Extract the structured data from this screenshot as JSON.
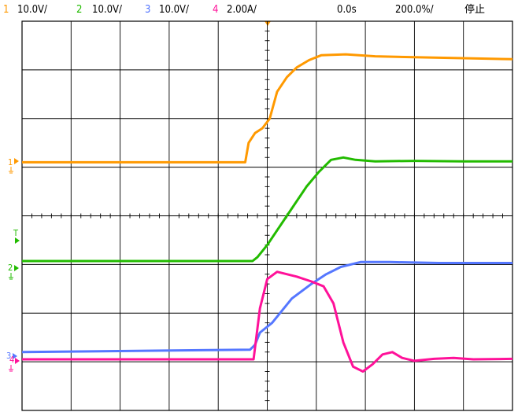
{
  "header": {
    "ch1": {
      "num": "1",
      "scale": "10.0V/"
    },
    "ch2": {
      "num": "2",
      "scale": "10.0V/"
    },
    "ch3": {
      "num": "3",
      "scale": "10.0V/"
    },
    "ch4": {
      "num": "4",
      "scale": "2.00A/"
    },
    "time_position": "0.0s",
    "time_scale": "200.0%/",
    "run_state": "停止"
  },
  "markers": {
    "ch1": "1",
    "trigger": "T",
    "ch2": "2",
    "ch3": "3",
    "ch4": "4"
  },
  "colors": {
    "ch1": "#ff9900",
    "ch2": "#22bb00",
    "ch3": "#5577ff",
    "ch4": "#ff1199",
    "grid": "#000000",
    "trigger_marker": "#ff9900"
  },
  "chart_data": {
    "type": "line",
    "x_divisions": 10,
    "y_divisions": 8,
    "xlim": [
      0,
      10
    ],
    "ylim": [
      0,
      8
    ],
    "series": [
      {
        "name": "1",
        "color": "#ff9900",
        "points": [
          [
            0,
            5.1
          ],
          [
            4.55,
            5.1
          ],
          [
            4.62,
            5.5
          ],
          [
            4.75,
            5.7
          ],
          [
            4.9,
            5.8
          ],
          [
            5.05,
            6.0
          ],
          [
            5.2,
            6.55
          ],
          [
            5.4,
            6.85
          ],
          [
            5.6,
            7.05
          ],
          [
            5.85,
            7.2
          ],
          [
            6.1,
            7.3
          ],
          [
            6.6,
            7.32
          ],
          [
            7.2,
            7.28
          ],
          [
            8.0,
            7.26
          ],
          [
            9.0,
            7.24
          ],
          [
            10,
            7.22
          ]
        ]
      },
      {
        "name": "2",
        "color": "#22bb00",
        "points": [
          [
            0,
            3.07
          ],
          [
            4.7,
            3.07
          ],
          [
            4.8,
            3.15
          ],
          [
            5.0,
            3.4
          ],
          [
            5.4,
            4.0
          ],
          [
            5.8,
            4.6
          ],
          [
            6.05,
            4.9
          ],
          [
            6.3,
            5.15
          ],
          [
            6.55,
            5.2
          ],
          [
            6.8,
            5.15
          ],
          [
            7.2,
            5.12
          ],
          [
            8.0,
            5.13
          ],
          [
            9.0,
            5.12
          ],
          [
            10,
            5.12
          ]
        ]
      },
      {
        "name": "3",
        "color": "#5577ff",
        "points": [
          [
            0,
            1.2
          ],
          [
            4.65,
            1.25
          ],
          [
            4.75,
            1.35
          ],
          [
            4.85,
            1.6
          ],
          [
            5.1,
            1.8
          ],
          [
            5.5,
            2.3
          ],
          [
            5.9,
            2.6
          ],
          [
            6.2,
            2.8
          ],
          [
            6.5,
            2.95
          ],
          [
            6.9,
            3.05
          ],
          [
            7.5,
            3.05
          ],
          [
            8.5,
            3.03
          ],
          [
            10,
            3.03
          ]
        ]
      },
      {
        "name": "4",
        "color": "#ff1199",
        "points": [
          [
            0,
            1.05
          ],
          [
            4.72,
            1.05
          ],
          [
            4.85,
            2.1
          ],
          [
            5.0,
            2.7
          ],
          [
            5.2,
            2.85
          ],
          [
            5.6,
            2.75
          ],
          [
            5.9,
            2.65
          ],
          [
            6.15,
            2.55
          ],
          [
            6.35,
            2.2
          ],
          [
            6.55,
            1.4
          ],
          [
            6.75,
            0.9
          ],
          [
            6.95,
            0.8
          ],
          [
            7.15,
            0.95
          ],
          [
            7.35,
            1.15
          ],
          [
            7.55,
            1.2
          ],
          [
            7.75,
            1.08
          ],
          [
            8.0,
            1.02
          ],
          [
            8.4,
            1.06
          ],
          [
            8.8,
            1.08
          ],
          [
            9.2,
            1.05
          ],
          [
            10,
            1.06
          ]
        ]
      }
    ]
  }
}
